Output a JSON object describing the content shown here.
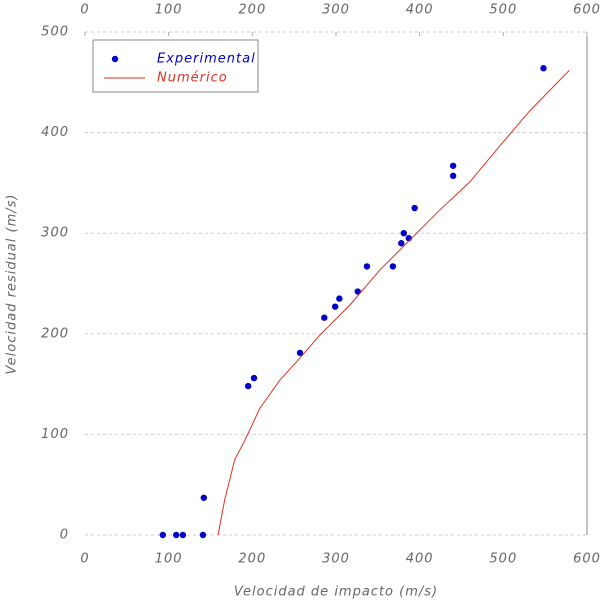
{
  "chart_data": {
    "type": "scatter-line",
    "xlabel": "Velocidad de impacto (m/s)",
    "ylabel": "Velocidad residual (m/s)",
    "xlim": [
      0,
      600
    ],
    "ylim": [
      0,
      500
    ],
    "xticks": [
      0,
      100,
      200,
      300,
      400,
      500,
      600
    ],
    "yticks": [
      0,
      100,
      200,
      300,
      400,
      500
    ],
    "grid": true,
    "legend": "upper left",
    "series": [
      {
        "name": "Experimental",
        "color": "#0000cc",
        "mode": "markers",
        "x": [
          93,
          109,
          117,
          141,
          142,
          195,
          202,
          257,
          286,
          299,
          304,
          326,
          337,
          368,
          378,
          381,
          387,
          394,
          440,
          440,
          548
        ],
        "values": [
          0,
          0,
          0,
          0,
          37,
          148,
          156,
          181,
          216,
          227,
          235,
          242,
          267,
          267,
          290,
          300,
          295,
          325,
          357,
          367,
          464
        ]
      },
      {
        "name": "Numérico",
        "color": "#e03020",
        "mode": "line",
        "x": [
          159,
          167,
          179,
          191,
          209,
          233,
          257,
          281,
          317,
          352,
          388,
          424,
          460,
          496,
          532,
          579
        ],
        "values": [
          0,
          35,
          75,
          94,
          126,
          154,
          176,
          199,
          229,
          263,
          293,
          323,
          351,
          387,
          422,
          462
        ]
      }
    ]
  }
}
